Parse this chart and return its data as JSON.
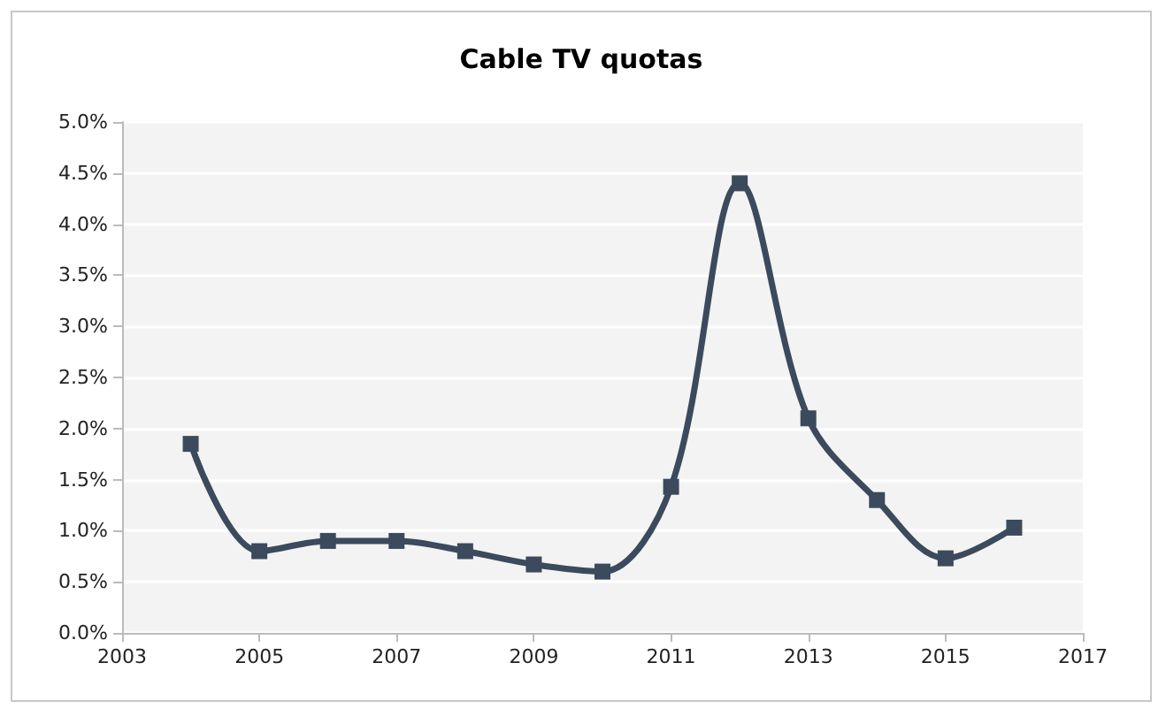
{
  "chart_data": {
    "type": "line",
    "title": "Cable TV quotas",
    "x": [
      2004,
      2005,
      2006,
      2007,
      2008,
      2009,
      2010,
      2011,
      2012,
      2013,
      2014,
      2015,
      2016
    ],
    "series": [
      {
        "color": "#3b4a5c",
        "values": [
          1.85,
          0.8,
          0.9,
          0.9,
          0.8,
          0.67,
          0.6,
          1.43,
          4.4,
          2.1,
          1.3,
          0.73,
          1.03
        ]
      }
    ],
    "xlim": [
      2003,
      2017
    ],
    "xticks": [
      2003,
      2005,
      2007,
      2009,
      2011,
      2013,
      2015,
      2017
    ],
    "ylim": [
      0,
      5
    ],
    "yticks": [
      {
        "value": 0,
        "label": "0.0%"
      },
      {
        "value": 0.5,
        "label": "0.5%"
      },
      {
        "value": 1,
        "label": "1.0%"
      },
      {
        "value": 1.5,
        "label": "1.5%"
      },
      {
        "value": 2,
        "label": "2.0%"
      },
      {
        "value": 2.5,
        "label": "2.5%"
      },
      {
        "value": 3,
        "label": "3.0%"
      },
      {
        "value": 3.5,
        "label": "3.5%"
      },
      {
        "value": 4,
        "label": "4.0%"
      },
      {
        "value": 4.5,
        "label": "4.5%"
      },
      {
        "value": 5,
        "label": "5.0%"
      }
    ],
    "grid": "y",
    "marker": "square",
    "line_style": "solid"
  }
}
